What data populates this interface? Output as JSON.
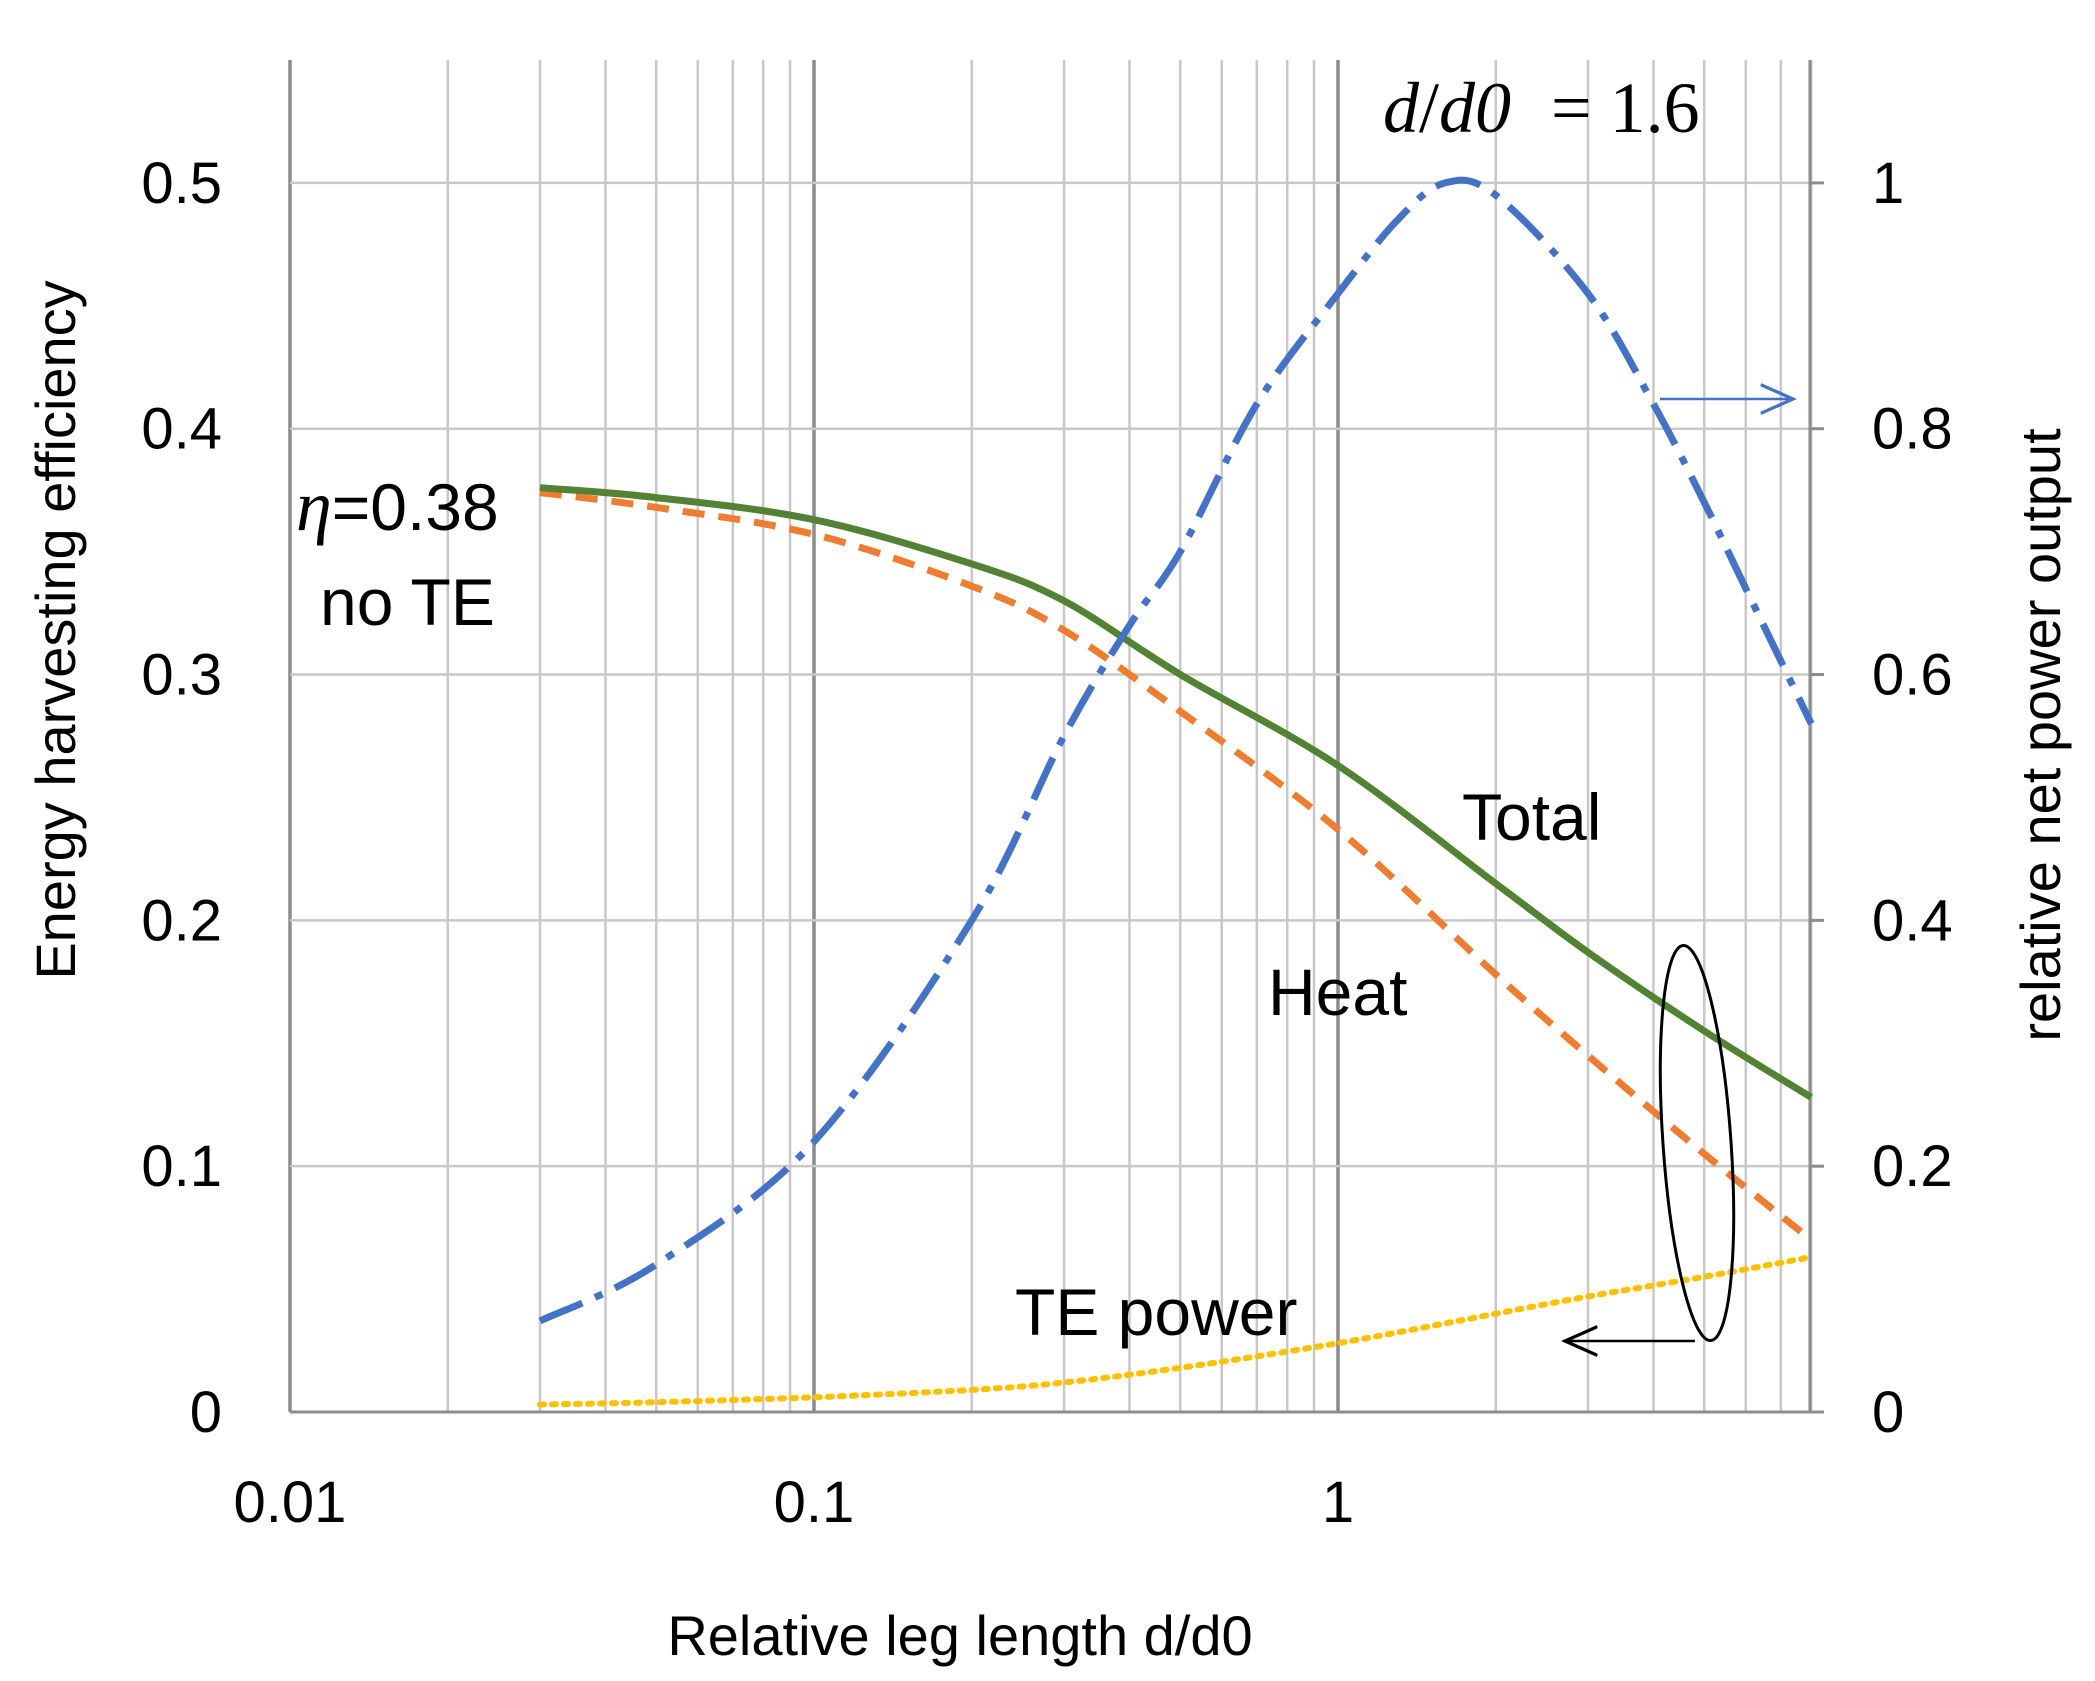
{
  "chart_data": {
    "type": "line",
    "title": "",
    "xlabel": "Relative leg length d/d0",
    "ylabel": "Energy harvesting efficiency",
    "y2label": "relative net power output",
    "xscale": "log",
    "xlim": [
      0.01,
      8
    ],
    "ylim": [
      0,
      0.55
    ],
    "y2lim": [
      0,
      1.1
    ],
    "grid": true,
    "x_ticks": [
      0.01,
      0.1,
      1
    ],
    "x_tick_labels": [
      "0.01",
      "0.1",
      "1"
    ],
    "y_ticks": [
      0,
      0.1,
      0.2,
      0.3,
      0.4,
      0.5
    ],
    "y_tick_labels": [
      "0",
      "0.1",
      "0.2",
      "0.3",
      "0.4",
      "0.5"
    ],
    "y2_ticks": [
      0,
      0.2,
      0.4,
      0.6,
      0.8,
      1
    ],
    "y2_tick_labels": [
      "0",
      "0.2",
      "0.4",
      "0.6",
      "0.8",
      "1"
    ],
    "series": [
      {
        "name": "Total",
        "axis": "left",
        "color": "#548235",
        "style": "solid",
        "x": [
          0.03,
          0.05,
          0.1,
          0.2,
          0.3,
          0.5,
          1,
          2,
          3,
          5,
          8
        ],
        "values": [
          0.376,
          0.372,
          0.363,
          0.345,
          0.33,
          0.3,
          0.263,
          0.215,
          0.187,
          0.155,
          0.128
        ]
      },
      {
        "name": "Heat",
        "axis": "left",
        "color": "#ED7D31",
        "style": "dashed",
        "x": [
          0.03,
          0.05,
          0.1,
          0.2,
          0.3,
          0.5,
          1,
          2,
          3,
          5,
          8
        ],
        "values": [
          0.374,
          0.368,
          0.357,
          0.336,
          0.318,
          0.285,
          0.237,
          0.178,
          0.145,
          0.105,
          0.07
        ]
      },
      {
        "name": "TE power",
        "axis": "left",
        "color": "#FFC000",
        "style": "dotted",
        "x": [
          0.03,
          0.05,
          0.1,
          0.2,
          0.3,
          0.5,
          1,
          2,
          3,
          5,
          8
        ],
        "values": [
          0.003,
          0.004,
          0.006,
          0.009,
          0.012,
          0.018,
          0.028,
          0.04,
          0.047,
          0.055,
          0.063
        ]
      },
      {
        "name": "relative net power output",
        "axis": "right",
        "color": "#4472C4",
        "style": "dashdot",
        "x": [
          0.03,
          0.05,
          0.1,
          0.2,
          0.3,
          0.4,
          0.5,
          0.7,
          1,
          1.3,
          1.6,
          2,
          3,
          4,
          5,
          6,
          8
        ],
        "values": [
          0.074,
          0.12,
          0.22,
          0.4,
          0.55,
          0.64,
          0.7,
          0.82,
          0.91,
          0.97,
          1.0,
          0.99,
          0.91,
          0.82,
          0.74,
          0.67,
          0.56
        ]
      }
    ],
    "annotations": {
      "total": "Total",
      "heat": "Heat",
      "te_power": "TE power",
      "eta_symbol": "η",
      "eta_value": "=0.38",
      "no_te": "no TE",
      "peak_d": "d",
      "peak_slash": "/",
      "peak_d0": "d0",
      "peak_eq": "= 1.6"
    }
  }
}
